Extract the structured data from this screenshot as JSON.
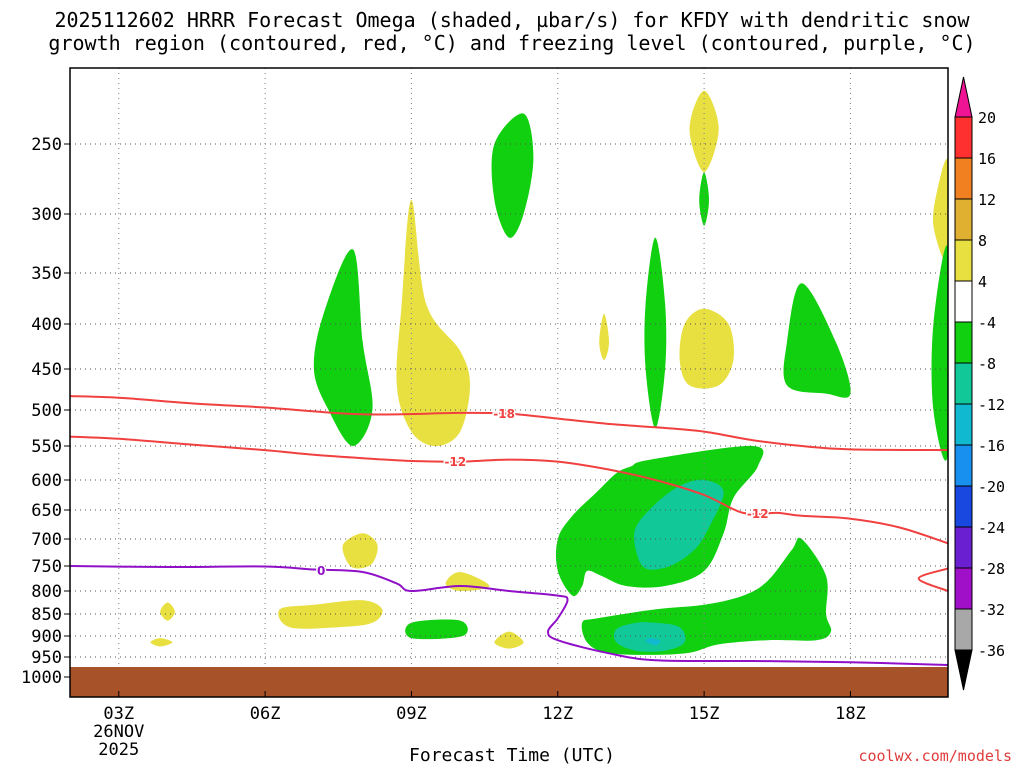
{
  "title_line1": "2025112602 HRRR Forecast Omega (shaded, µbar/s) for KFDY with dendritic snow",
  "title_line2": "growth region (contoured, red, °C) and freezing level (contoured, purple, °C)",
  "chart_data": {
    "type": "time-height cross section",
    "xlabel": "Forecast Time (UTC)",
    "ylabel": "",
    "x_ticks": [
      {
        "hour": 3,
        "label": "03Z"
      },
      {
        "hour": 6,
        "label": "06Z"
      },
      {
        "hour": 9,
        "label": "09Z"
      },
      {
        "hour": 12,
        "label": "12Z"
      },
      {
        "hour": 15,
        "label": "15Z"
      },
      {
        "hour": 18,
        "label": "18Z"
      }
    ],
    "x_date_label": [
      "26NOV",
      "2025"
    ],
    "xlim_hours": [
      2,
      20
    ],
    "y_ticks": [
      250,
      300,
      350,
      400,
      450,
      500,
      550,
      600,
      650,
      700,
      750,
      800,
      850,
      900,
      950,
      1000
    ],
    "ylim_mb": [
      200,
      1000
    ],
    "ground_level_mb": 975,
    "colorbar": {
      "levels": [
        20,
        16,
        12,
        8,
        4,
        -4,
        -8,
        -12,
        -16,
        -20,
        -24,
        -28,
        -32,
        -36
      ],
      "colors": [
        "#ee1493",
        "#ff3030",
        "#f08020",
        "#e0b030",
        "#e8e040",
        "#ffffff",
        "#10d010",
        "#10c898",
        "#10b8d0",
        "#1890f0",
        "#1848e0",
        "#6a20d0",
        "#a010c8",
        "#a8a8a8",
        "#000000"
      ]
    },
    "series": [
      {
        "name": "-18 °C isotherm",
        "color": "#f04040",
        "label": "-18",
        "points": [
          [
            2,
            483
          ],
          [
            3,
            485
          ],
          [
            4.5,
            492
          ],
          [
            6,
            497
          ],
          [
            8,
            506
          ],
          [
            10,
            504
          ],
          [
            11,
            505
          ],
          [
            12,
            512
          ],
          [
            13,
            519
          ],
          [
            14,
            524
          ],
          [
            15,
            530
          ],
          [
            16,
            542
          ],
          [
            17,
            550
          ],
          [
            18,
            555
          ],
          [
            20,
            556
          ]
        ]
      },
      {
        "name": "-12 °C isotherm",
        "color": "#f04040",
        "label": "-12",
        "points": [
          [
            2,
            537
          ],
          [
            3,
            540
          ],
          [
            4.5,
            548
          ],
          [
            6,
            556
          ],
          [
            7,
            563
          ],
          [
            8,
            568
          ],
          [
            9,
            572
          ],
          [
            10,
            573
          ],
          [
            11,
            570
          ],
          [
            12,
            573
          ],
          [
            13,
            584
          ],
          [
            14,
            600
          ],
          [
            15,
            625
          ],
          [
            15.8,
            655
          ],
          [
            16.5,
            655
          ],
          [
            17,
            660
          ],
          [
            18,
            665
          ],
          [
            19,
            680
          ],
          [
            20,
            708
          ]
        ]
      },
      {
        "name": "-12 °C isotherm (lower branch)",
        "color": "#f04040",
        "label": "",
        "points": [
          [
            20,
            755
          ],
          [
            19.4,
            775
          ],
          [
            20,
            800
          ]
        ]
      },
      {
        "name": "0 °C freezing level",
        "color": "#9010c8",
        "label": "0",
        "points": [
          [
            2,
            750
          ],
          [
            4,
            752
          ],
          [
            6,
            751
          ],
          [
            7,
            757
          ],
          [
            8,
            762
          ],
          [
            8.7,
            785
          ],
          [
            9,
            800
          ],
          [
            10,
            790
          ],
          [
            11,
            800
          ],
          [
            12,
            810
          ],
          [
            12.2,
            820
          ],
          [
            12,
            860
          ],
          [
            11.8,
            890
          ],
          [
            12,
            910
          ],
          [
            13,
            940
          ],
          [
            14,
            958
          ],
          [
            16,
            960
          ],
          [
            18,
            963
          ],
          [
            20,
            970
          ]
        ]
      }
    ],
    "omega_regions": [
      {
        "range": "4 to 8",
        "color": "#e8e040",
        "outlines": [
          [
            [
              15,
              215
            ],
            [
              15.3,
              240
            ],
            [
              15,
              270
            ],
            [
              14.7,
              240
            ]
          ],
          [
            [
              9,
              290
            ],
            [
              9.3,
              380
            ],
            [
              10,
              430
            ],
            [
              10.2,
              470
            ],
            [
              10,
              530
            ],
            [
              9.5,
              550
            ],
            [
              9,
              530
            ],
            [
              8.7,
              470
            ],
            [
              8.8,
              380
            ]
          ],
          [
            [
              12.95,
              390
            ],
            [
              13.05,
              420
            ],
            [
              12.95,
              440
            ],
            [
              12.85,
              420
            ]
          ],
          [
            [
              15,
              385
            ],
            [
              15.5,
              400
            ],
            [
              15.6,
              440
            ],
            [
              15.3,
              470
            ],
            [
              14.7,
              470
            ],
            [
              14.5,
              440
            ],
            [
              14.6,
              400
            ]
          ],
          [
            [
              8,
              690
            ],
            [
              8.3,
              710
            ],
            [
              8.2,
              745
            ],
            [
              7.9,
              755
            ],
            [
              7.7,
              745
            ],
            [
              7.6,
              710
            ]
          ],
          [
            [
              8,
              820
            ],
            [
              8.4,
              840
            ],
            [
              8.2,
              870
            ],
            [
              7.5,
              880
            ],
            [
              6.5,
              880
            ],
            [
              6.3,
              840
            ],
            [
              7,
              830
            ]
          ],
          [
            [
              10,
              762
            ],
            [
              10.6,
              790
            ],
            [
              10,
              800
            ],
            [
              9.7,
              785
            ]
          ],
          [
            [
              4,
              825
            ],
            [
              4.15,
              845
            ],
            [
              4,
              865
            ],
            [
              3.85,
              845
            ]
          ],
          [
            [
              11,
              890
            ],
            [
              11.3,
              915
            ],
            [
              11,
              930
            ],
            [
              10.7,
              915
            ]
          ],
          [
            [
              3.85,
              905
            ],
            [
              4.1,
              915
            ],
            [
              3.85,
              925
            ],
            [
              3.65,
              915
            ]
          ],
          [
            [
              20,
              263
            ],
            [
              19.8,
              280
            ],
            [
              19.7,
              310
            ],
            [
              20,
              340
            ]
          ]
        ]
      },
      {
        "range": "-4 to -8",
        "color": "#10d010",
        "outlines": [
          [
            [
              11.3,
              230
            ],
            [
              11.5,
              260
            ],
            [
              11.3,
              300
            ],
            [
              11,
              320
            ],
            [
              10.7,
              290
            ],
            [
              10.7,
              250
            ]
          ],
          [
            [
              15,
              270
            ],
            [
              15.1,
              290
            ],
            [
              15,
              310
            ],
            [
              14.9,
              290
            ]
          ],
          [
            [
              7.8,
              330
            ],
            [
              8,
              420
            ],
            [
              8.2,
              500
            ],
            [
              7.8,
              550
            ],
            [
              7.3,
              500
            ],
            [
              7,
              450
            ],
            [
              7.2,
              390
            ]
          ],
          [
            [
              14,
              320
            ],
            [
              14.2,
              380
            ],
            [
              14.2,
              450
            ],
            [
              14,
              525
            ],
            [
              13.8,
              450
            ],
            [
              13.8,
              380
            ]
          ],
          [
            [
              17,
              360
            ],
            [
              17.7,
              420
            ],
            [
              18,
              480
            ],
            [
              17.5,
              480
            ],
            [
              16.7,
              470
            ],
            [
              16.7,
              420
            ]
          ],
          [
            [
              20,
              330
            ],
            [
              19.7,
              400
            ],
            [
              19.7,
              500
            ],
            [
              20,
              560
            ]
          ],
          [
            [
              13.9,
              570
            ],
            [
              16,
              550
            ],
            [
              16.1,
              580
            ],
            [
              15.6,
              630
            ],
            [
              15.4,
              690
            ],
            [
              15,
              760
            ],
            [
              14.2,
              790
            ],
            [
              13.4,
              790
            ],
            [
              12.9,
              770
            ],
            [
              12.6,
              760
            ],
            [
              12.5,
              790
            ],
            [
              12.3,
              810
            ],
            [
              12,
              760
            ],
            [
              12,
              700
            ],
            [
              12.3,
              660
            ],
            [
              12.8,
              620
            ],
            [
              13.2,
              590
            ],
            [
              13.5,
              580
            ]
          ],
          [
            [
              12.8,
              860
            ],
            [
              14,
              840
            ],
            [
              15,
              830
            ],
            [
              15.8,
              810
            ],
            [
              16.3,
              780
            ],
            [
              16.8,
              720
            ],
            [
              17,
              700
            ],
            [
              17.5,
              770
            ],
            [
              17.5,
              850
            ],
            [
              17.6,
              890
            ],
            [
              17.3,
              910
            ],
            [
              16.3,
              910
            ],
            [
              15.3,
              920
            ],
            [
              14.7,
              940
            ],
            [
              13.9,
              945
            ],
            [
              13,
              940
            ],
            [
              12.6,
              915
            ],
            [
              12.5,
              870
            ]
          ],
          [
            [
              9,
              870
            ],
            [
              10,
              865
            ],
            [
              10.05,
              900
            ],
            [
              9,
              905
            ]
          ]
        ]
      },
      {
        "range": "-8 to -12",
        "color": "#10c898",
        "outlines": [
          [
            [
              15,
              600
            ],
            [
              15.4,
              620
            ],
            [
              15.1,
              680
            ],
            [
              14.8,
              720
            ],
            [
              14.3,
              750
            ],
            [
              13.8,
              755
            ],
            [
              13.6,
              720
            ],
            [
              13.6,
              680
            ],
            [
              14,
              640
            ],
            [
              14.5,
              610
            ]
          ],
          [
            [
              14,
              870
            ],
            [
              14.5,
              880
            ],
            [
              14.6,
              915
            ],
            [
              14.2,
              935
            ],
            [
              13.6,
              935
            ],
            [
              13.2,
              915
            ],
            [
              13.2,
              885
            ],
            [
              13.6,
              870
            ]
          ]
        ]
      },
      {
        "range": "-12 to -16",
        "color": "#10b8d0",
        "outlines": [
          [
            [
              13.9,
              905
            ],
            [
              14.1,
              912
            ],
            [
              14,
              922
            ],
            [
              13.8,
              912
            ]
          ]
        ]
      }
    ]
  },
  "credit": "coolwx.com/models"
}
